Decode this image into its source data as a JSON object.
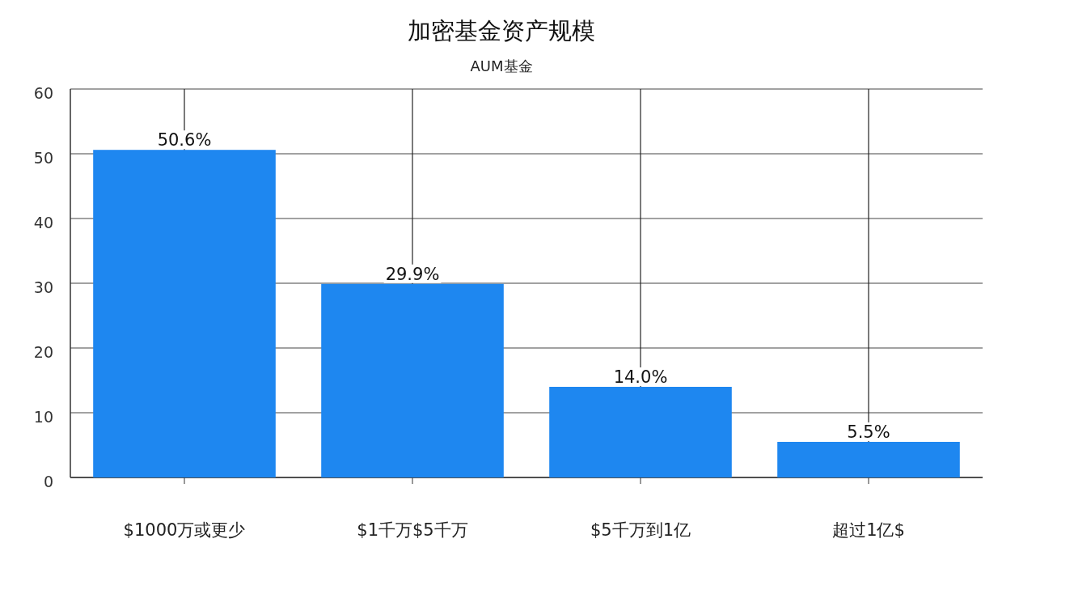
{
  "chart_data": {
    "type": "bar",
    "title": "加密基金资产规模",
    "subtitle": "AUM基金",
    "categories": [
      "$1000万或更少",
      "$1千万$5千万",
      "$5千万到1亿",
      "超过1亿$"
    ],
    "values": [
      50.6,
      29.9,
      14.0,
      5.5
    ],
    "value_labels": [
      "50.6%",
      "29.9%",
      "14.0%",
      "5.5%"
    ],
    "color": "#1e87f0",
    "ylim": [
      0,
      60
    ],
    "yticks": [
      0,
      10,
      20,
      30,
      40,
      50,
      60
    ],
    "grid": true
  }
}
